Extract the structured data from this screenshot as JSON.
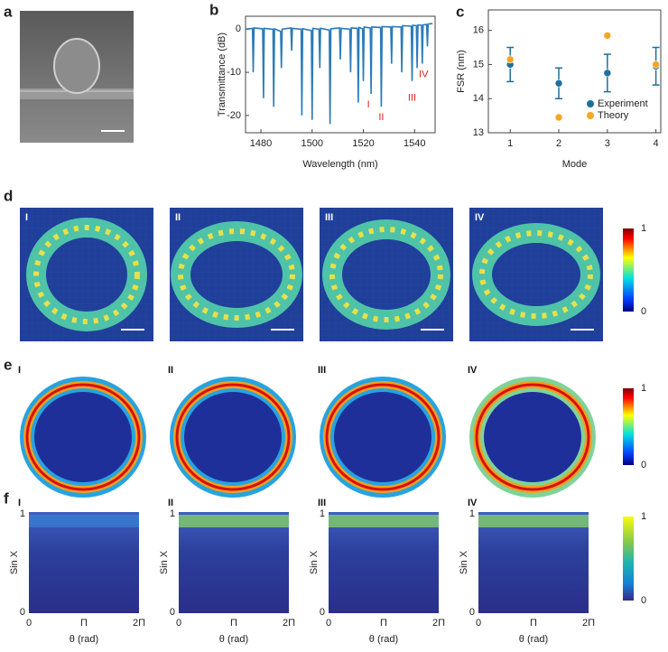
{
  "chart_data": [
    {
      "type": "line",
      "xlabel": "Wavelength (nm)",
      "ylabel": "Transmittance (dB)",
      "color": "#2b7bba",
      "x": [
        1474,
        1476.7,
        1477,
        1477.3,
        1480.7,
        1481,
        1481.3,
        1484.7,
        1485,
        1485.3,
        1487.7,
        1488,
        1488.3,
        1491.7,
        1492,
        1492.3,
        1495.7,
        1496,
        1496.3,
        1499.7,
        1500,
        1500.3,
        1502.7,
        1503,
        1503.3,
        1506.7,
        1507,
        1507.3,
        1510.7,
        1511,
        1511.3,
        1514.7,
        1515,
        1515.3,
        1517.7,
        1518,
        1518.3,
        1519.7,
        1520,
        1520.3,
        1522.7,
        1523,
        1523.3,
        1526.7,
        1527,
        1527.3,
        1530.7,
        1531,
        1531.3,
        1534.7,
        1535,
        1535.3,
        1538.7,
        1539,
        1539.3,
        1540.7,
        1541,
        1541.3,
        1542.7,
        1543,
        1543.3,
        1544.7,
        1545,
        1545.3,
        1547
      ],
      "values": [
        0,
        0.2,
        -10,
        0.3,
        0.1,
        -16,
        0.2,
        0,
        -18,
        0.1,
        -0.5,
        -9,
        0,
        0.3,
        -5,
        0.2,
        0,
        -20,
        0.1,
        -0.3,
        -21,
        0.2,
        0,
        -9,
        0.2,
        -0.2,
        -22,
        0.1,
        0.3,
        -7,
        0.2,
        0,
        -10,
        0.3,
        0.2,
        -17,
        0.4,
        0.1,
        -12,
        0.5,
        0.3,
        -15,
        0.5,
        0.4,
        -18,
        0.6,
        0.5,
        -8,
        0.6,
        0.5,
        -10,
        0.8,
        0.7,
        -12,
        0.9,
        0.8,
        -9,
        1,
        0.9,
        -8,
        1,
        1.1,
        -4,
        1.2,
        1.3
      ],
      "xlim": [
        1474,
        1548
      ],
      "xticks": [
        1480,
        1500,
        1520,
        1540
      ],
      "ylim": [
        -24,
        3
      ],
      "yticks": [
        0,
        -10,
        -20
      ],
      "annotations": [
        {
          "text": "I",
          "x": 1522,
          "y": -17.5
        },
        {
          "text": "II",
          "x": 1527,
          "y": -20.5
        },
        {
          "text": "III",
          "x": 1539,
          "y": -16
        },
        {
          "text": "IV",
          "x": 1543.5,
          "y": -10.5
        }
      ]
    },
    {
      "type": "scatter",
      "xlabel": "Mode",
      "ylabel": "FSR (nm)",
      "x": [
        1,
        2,
        3,
        4
      ],
      "xlim": [
        0.55,
        4.1
      ],
      "xticks": [
        1,
        2,
        3,
        4
      ],
      "ylim": [
        13,
        16.6
      ],
      "yticks": [
        13,
        14,
        15,
        16
      ],
      "legend": "lower right",
      "series": [
        {
          "name": "Experiment",
          "color": "#1f6f9e",
          "values": [
            15.0,
            14.45,
            14.75,
            14.95
          ],
          "errors": [
            0.5,
            0.45,
            0.55,
            0.55
          ]
        },
        {
          "name": "Theory",
          "color": "#f5a623",
          "values": [
            15.15,
            13.45,
            15.85,
            15.0
          ]
        }
      ]
    }
  ],
  "labels": {
    "panels": [
      "a",
      "b",
      "c",
      "d",
      "e",
      "f"
    ],
    "modes": [
      "I",
      "II",
      "III",
      "IV"
    ],
    "colorbar": [
      "1",
      "0"
    ],
    "f": {
      "ylabel": "Sin X",
      "yticks": [
        "1",
        "0"
      ],
      "xticks": [
        "0",
        "Π",
        "2Π"
      ],
      "xlabel": "θ (rad)"
    }
  }
}
